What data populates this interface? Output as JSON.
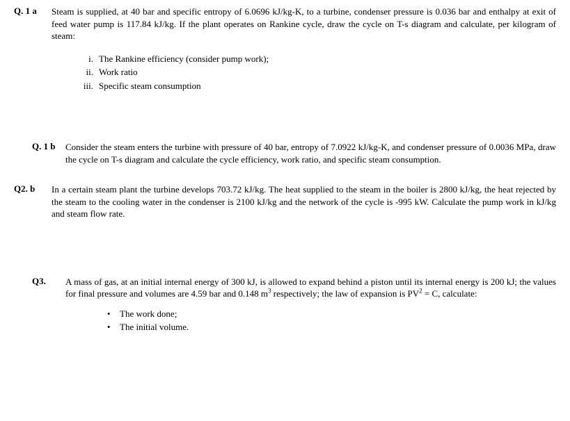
{
  "q1a": {
    "label": "Q. 1 a",
    "paragraph": "Steam is supplied, at 40 bar and specific entropy of 6.0696 kJ/kg-K, to a turbine, condenser pressure is 0.036 bar and enthalpy at exit of feed water pump is 117.84 kJ/kg. If the plant operates on Rankine cycle, draw the cycle on T-s diagram and calculate, per kilogram of steam:",
    "items": [
      {
        "num": "i.",
        "text": "The Rankine efficiency (consider pump work);"
      },
      {
        "num": "ii.",
        "text": "Work ratio"
      },
      {
        "num": "iii.",
        "text": "Specific steam consumption"
      }
    ]
  },
  "q1b": {
    "label": "Q. 1 b",
    "paragraph": "Consider the steam enters the turbine with pressure of 40 bar, entropy of 7.0922 kJ/kg-K, and condenser pressure of 0.0036 MPa, draw the cycle on T-s diagram and calculate the cycle efficiency, work ratio, and specific steam consumption."
  },
  "q2b": {
    "label": "Q2. b",
    "paragraph": "In a certain steam plant the turbine develops 703.72 kJ/kg. The heat supplied to the steam in the boiler is 2800 kJ/kg, the heat rejected by the steam to the cooling water in the condenser is 2100 kJ/kg and the network of the cycle is -995 kW. Calculate the pump work in kJ/kg and steam flow rate."
  },
  "q3": {
    "label": "Q3.",
    "paragraph_html": "A mass of gas, at an initial internal energy of 300 kJ, is allowed to expand behind a piston until its internal energy is 200 kJ; the values for final pressure and volumes are 4.59 bar and 0.148 m<sup>3</sup> respectively; the law of expansion is PV<sup>2</sup> = C, calculate:",
    "bullets": [
      "The work done;",
      "The initial volume."
    ]
  }
}
